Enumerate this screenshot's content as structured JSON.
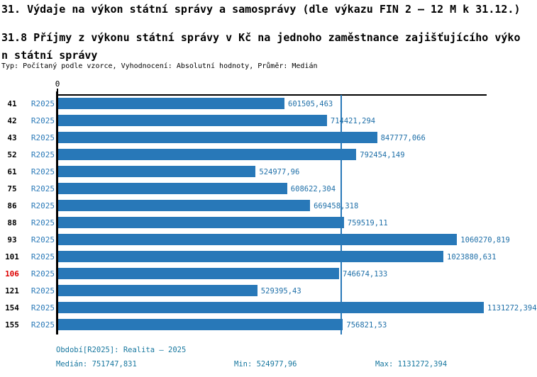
{
  "header": {
    "title": "31. Výdaje na výkon státní správy a samosprávy (dle výkazu FIN 2 – 12 M k 31.12.)",
    "subtitle_line1": "31.8 Příjmy z výkonu státní správy v Kč na jednoho zaměstnance zajišťujícího výko",
    "subtitle_line2": "n státní správy",
    "meta": "Typ: Počítaný podle vzorce, Vyhodnocení: Absolutní hodnoty, Průměr: Medián"
  },
  "chart_data": {
    "type": "bar",
    "orientation": "horizontal",
    "axis_origin_label": "0",
    "series_label": "R2025",
    "categories": [
      "41",
      "42",
      "43",
      "52",
      "61",
      "75",
      "86",
      "88",
      "93",
      "101",
      "106",
      "121",
      "154",
      "155"
    ],
    "values": [
      601505.463,
      714421.294,
      847777.066,
      792454.149,
      524977.96,
      608622.304,
      669458.318,
      759519.11,
      1060270.819,
      1023880.631,
      746674.133,
      529395.43,
      1131272.394,
      756821.53
    ],
    "value_labels": [
      "601505,463",
      "714421,294",
      "847777,066",
      "792454,149",
      "524977,96",
      "608622,304",
      "669458,318",
      "759519,11",
      "1060270,819",
      "1023880,631",
      "746674,133",
      "529395,43",
      "1131272,394",
      "756821,53"
    ],
    "highlighted_category": "106",
    "median_value": 751747.831,
    "min_value": 524977.96,
    "max_value": 1131272.394,
    "xlim": [
      0,
      1131272.394
    ],
    "grid": false,
    "legend": "none",
    "colors": {
      "bar": "#2878b8",
      "median_line": "#2878b8",
      "series_text": "#2b7ab8",
      "value_text": "#1e6fa8",
      "footer_text": "#17779f",
      "highlight": "#dd0000",
      "axis": "#000000"
    }
  },
  "footer": {
    "period": "Období[R2025]: Realita – 2025",
    "median": "Medián: 751747,831",
    "min": "Min: 524977,96",
    "max": "Max: 1131272,394"
  }
}
